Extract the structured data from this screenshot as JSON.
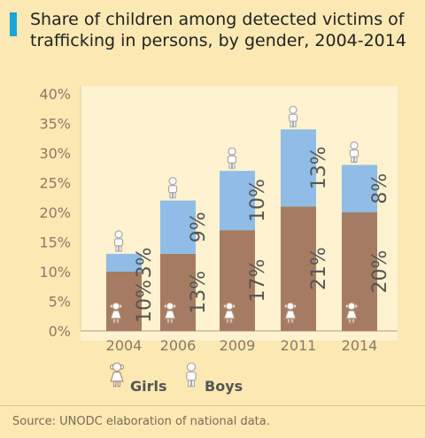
{
  "chart_data": {
    "type": "bar",
    "title": "Share of children among detected victims of trafficking in persons, by gender, 2004-2014",
    "categories": [
      "2004",
      "2006",
      "2009",
      "2011",
      "2014"
    ],
    "series": [
      {
        "name": "Girls",
        "values": [
          10,
          13,
          17,
          21,
          20
        ],
        "labels": [
          "10%",
          "13%",
          "17%",
          "21%",
          "20%"
        ],
        "color": "#a57c62",
        "icon": "girl-icon"
      },
      {
        "name": "Boys",
        "values": [
          3,
          9,
          10,
          13,
          8
        ],
        "labels": [
          "3%",
          "9%",
          "10%",
          "13%",
          "8%"
        ],
        "color": "#8fbde6",
        "icon": "boy-icon"
      }
    ],
    "stacked": true,
    "ylim": [
      0,
      40
    ],
    "yticks": [
      "0%",
      "5%",
      "10%",
      "15%",
      "20%",
      "25%",
      "30%",
      "35%",
      "40%"
    ],
    "grid": false,
    "legend": "bottom"
  },
  "colors": {
    "background": "#fce8b2",
    "panel": "#fff2cf",
    "accent": "#1aa6da"
  },
  "source": "Source: UNODC elaboration of national data."
}
